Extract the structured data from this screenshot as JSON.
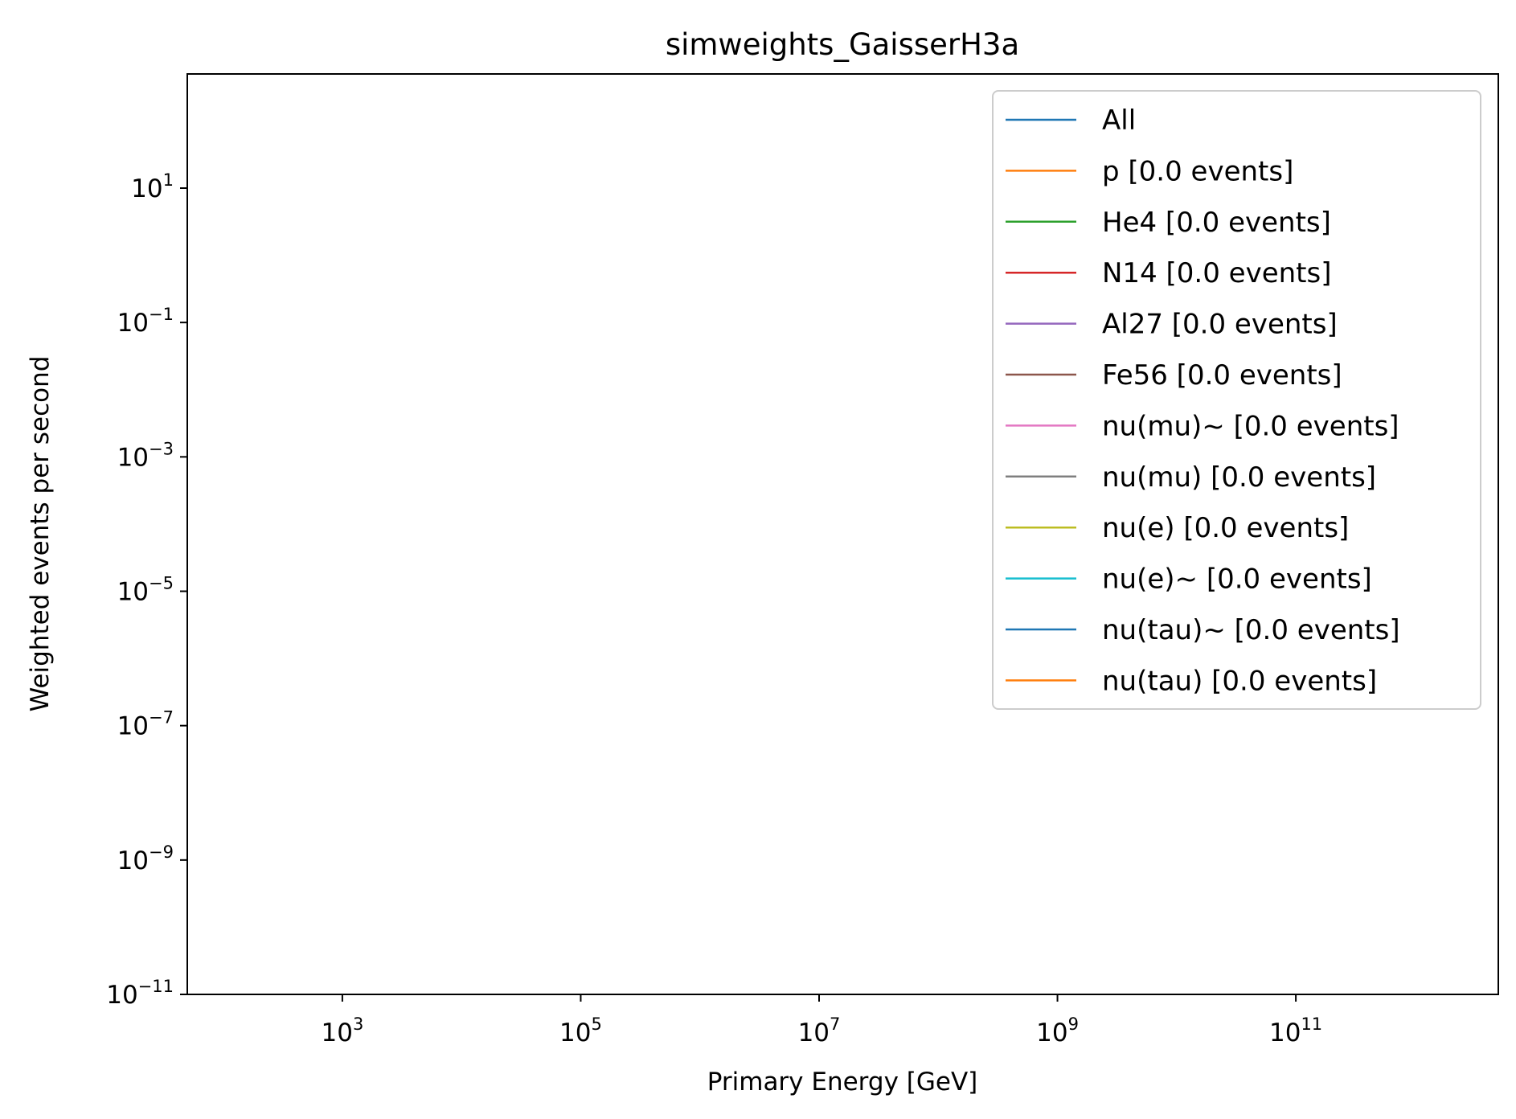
{
  "chart_data": {
    "type": "line",
    "title": "simweights_GaisserH3a",
    "xlabel": "Primary Energy [GeV]",
    "ylabel": "Weighted events per second",
    "xscale": "log",
    "yscale": "log",
    "xlim": [
      50,
      5000000000000
    ],
    "ylim": [
      1e-11,
      500
    ],
    "xticks": [
      {
        "base": "10",
        "exp": "3",
        "value": 1000
      },
      {
        "base": "10",
        "exp": "5",
        "value": 100000
      },
      {
        "base": "10",
        "exp": "7",
        "value": 10000000
      },
      {
        "base": "10",
        "exp": "9",
        "value": 1000000000
      },
      {
        "base": "10",
        "exp": "11",
        "value": 100000000000
      }
    ],
    "yticks": [
      {
        "base": "10",
        "exp": "1",
        "value": 10
      },
      {
        "base": "10",
        "exp": "−1",
        "value": 0.1
      },
      {
        "base": "10",
        "exp": "−3",
        "value": 0.001
      },
      {
        "base": "10",
        "exp": "−5",
        "value": 1e-05
      },
      {
        "base": "10",
        "exp": "−7",
        "value": 1e-07
      },
      {
        "base": "10",
        "exp": "−9",
        "value": 1e-09
      },
      {
        "base": "10",
        "exp": "−11",
        "value": 1e-11
      }
    ],
    "grid": false,
    "legend_position": "top-right",
    "series": [
      {
        "name": "All",
        "color": "#1f77b4",
        "x": [],
        "y": []
      },
      {
        "name": "p [0.0 events]",
        "color": "#ff7f0e",
        "x": [],
        "y": []
      },
      {
        "name": "He4 [0.0 events]",
        "color": "#2ca02c",
        "x": [],
        "y": []
      },
      {
        "name": "N14 [0.0 events]",
        "color": "#d62728",
        "x": [],
        "y": []
      },
      {
        "name": "Al27 [0.0 events]",
        "color": "#9467bd",
        "x": [],
        "y": []
      },
      {
        "name": "Fe56 [0.0 events]",
        "color": "#8c564b",
        "x": [],
        "y": []
      },
      {
        "name": "nu(mu)~ [0.0 events]",
        "color": "#e377c2",
        "x": [],
        "y": []
      },
      {
        "name": "nu(mu) [0.0 events]",
        "color": "#7f7f7f",
        "x": [],
        "y": []
      },
      {
        "name": "nu(e) [0.0 events]",
        "color": "#bcbd22",
        "x": [],
        "y": []
      },
      {
        "name": "nu(e)~ [0.0 events]",
        "color": "#17becf",
        "x": [],
        "y": []
      },
      {
        "name": "nu(tau)~ [0.0 events]",
        "color": "#1f77b4",
        "x": [],
        "y": []
      },
      {
        "name": "nu(tau) [0.0 events]",
        "color": "#ff7f0e",
        "x": [],
        "y": []
      }
    ]
  }
}
